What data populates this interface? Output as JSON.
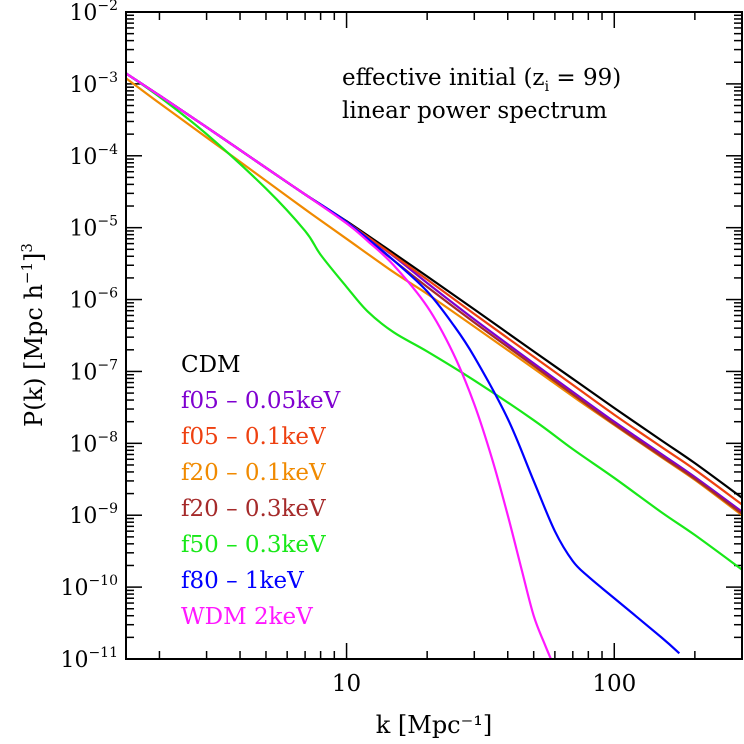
{
  "chart_data": {
    "type": "line",
    "title": "",
    "xlabel": "k  [Mpc⁻¹]",
    "ylabel_parts": {
      "main": "P(k)  [Mpc h",
      "sup1": "−1",
      "close": "]",
      "sup2": "3"
    },
    "x_scale": "log",
    "y_scale": "log",
    "xlim": [
      1.5,
      300
    ],
    "ylim": [
      1e-11,
      0.01
    ],
    "x_tick_labels": [
      {
        "value": 10,
        "label": "10"
      },
      {
        "value": 100,
        "label": "100"
      }
    ],
    "y_tick_labels": [
      {
        "exp": -2,
        "base": "10",
        "sup": "−2"
      },
      {
        "exp": -3,
        "base": "10",
        "sup": "−3"
      },
      {
        "exp": -4,
        "base": "10",
        "sup": "−4"
      },
      {
        "exp": -5,
        "base": "10",
        "sup": "−5"
      },
      {
        "exp": -6,
        "base": "10",
        "sup": "−6"
      },
      {
        "exp": -7,
        "base": "10",
        "sup": "−7"
      },
      {
        "exp": -8,
        "base": "10",
        "sup": "−8"
      },
      {
        "exp": -9,
        "base": "10",
        "sup": "−9"
      },
      {
        "exp": -10,
        "base": "10",
        "sup": "−10"
      },
      {
        "exp": -11,
        "base": "10",
        "sup": "−11"
      }
    ],
    "annotation": {
      "line1_a": "effective initial (z",
      "line1_sub": "i",
      "line1_b": " = 99)",
      "line2": "linear power spectrum"
    },
    "grid": false,
    "legend_position": "bottom-left",
    "series": [
      {
        "name": "CDM",
        "color": "#000000",
        "x": [
          1.5,
          2,
          3,
          5,
          7,
          10,
          15,
          20,
          30,
          50,
          70,
          100,
          150,
          200,
          300
        ],
        "y": [
          0.0014,
          0.00069,
          0.00025,
          6.8e-05,
          2.9e-05,
          1.23e-05,
          4.4e-06,
          2.1e-06,
          7.3e-07,
          1.9e-07,
          7.9e-08,
          3.1e-08,
          1.1e-08,
          5.3e-09,
          1.75e-09
        ]
      },
      {
        "name": "f05 – 0.05keV",
        "color": "#7f00d0",
        "x": [
          1.5,
          2,
          3,
          5,
          7,
          10,
          15,
          20,
          30,
          50,
          70,
          100,
          150,
          200,
          300
        ],
        "y": [
          0.0014,
          0.00069,
          0.00025,
          6.8e-05,
          2.9e-05,
          1.2e-05,
          4e-06,
          1.7e-06,
          5.3e-07,
          1.3e-07,
          5.2e-08,
          2e-08,
          7.1e-09,
          3.4e-09,
          1.12e-09
        ]
      },
      {
        "name": "f05 – 0.1keV",
        "color": "#ee4010",
        "x": [
          1.5,
          2,
          3,
          5,
          7,
          10,
          15,
          20,
          30,
          50,
          70,
          100,
          150,
          200,
          300
        ],
        "y": [
          0.0014,
          0.00069,
          0.00025,
          6.8e-05,
          2.9e-05,
          1.2e-05,
          4.1e-06,
          1.9e-06,
          6.3e-07,
          1.6e-07,
          6.5e-08,
          2.5e-08,
          8.9e-09,
          4.3e-09,
          1.41e-09
        ]
      },
      {
        "name": "f20 – 0.1keV",
        "color": "#f08a00",
        "x": [
          1.5,
          2,
          3,
          5,
          7,
          10,
          15,
          20,
          30,
          50,
          70,
          100,
          150,
          200,
          300
        ],
        "y": [
          0.0012,
          0.00054,
          0.00018,
          4.5e-05,
          1.8e-05,
          7e-06,
          2.4e-06,
          1.2e-06,
          4.2e-07,
          1.1e-07,
          4.5e-08,
          1.8e-08,
          6.4e-09,
          3.1e-09,
          1e-09
        ]
      },
      {
        "name": "f20 – 0.3keV",
        "color": "#a52a2a",
        "x": [
          1.5,
          2,
          3,
          5,
          7,
          10,
          15,
          20,
          30,
          50,
          70,
          100,
          150,
          200,
          300
        ],
        "y": [
          0.0014,
          0.00069,
          0.00025,
          6.8e-05,
          2.9e-05,
          1.15e-05,
          3.5e-06,
          1.5e-06,
          4.8e-07,
          1.2e-07,
          4.8e-08,
          1.85e-08,
          6.6e-09,
          3.2e-09,
          1.05e-09
        ]
      },
      {
        "name": "f50 – 0.3keV",
        "color": "#18e818",
        "x": [
          1.5,
          2,
          3,
          5,
          7,
          8,
          10,
          12,
          15,
          20,
          30,
          50,
          70,
          100,
          150,
          200,
          300
        ],
        "y": [
          0.0014,
          0.00066,
          0.0002,
          3.5e-05,
          9e-06,
          4.2e-06,
          1.5e-06,
          6.8e-07,
          3.5e-07,
          1.9e-07,
          7.5e-08,
          2.1e-08,
          8.3e-09,
          3.3e-09,
          1.1e-09,
          5.3e-10,
          1.75e-10
        ]
      },
      {
        "name": "f80 – 1keV",
        "color": "#0000ff",
        "x": [
          1.5,
          2,
          3,
          5,
          7,
          10,
          15,
          20,
          25,
          30,
          40,
          50,
          60,
          70,
          80,
          100,
          150,
          175
        ],
        "y": [
          0.0014,
          0.00069,
          0.00025,
          6.8e-05,
          2.9e-05,
          1.2e-05,
          3.5e-06,
          1.3e-06,
          4.5e-07,
          1.6e-07,
          2.2e-08,
          3e-09,
          6e-10,
          2.3e-10,
          1.4e-10,
          7e-11,
          2e-11,
          1.2e-11
        ]
      },
      {
        "name": "WDM 2keV",
        "color": "#ff18ff",
        "x": [
          1.5,
          2,
          3,
          5,
          7,
          10,
          12,
          15,
          20,
          25,
          30,
          35,
          40,
          45,
          50,
          55,
          58
        ],
        "y": [
          0.0014,
          0.00069,
          0.00025,
          6.8e-05,
          2.9e-05,
          1.15e-05,
          6.5e-06,
          3e-06,
          8e-07,
          1.8e-07,
          3.5e-08,
          6e-09,
          1e-09,
          1.8e-10,
          4e-11,
          1.6e-11,
          1e-11
        ]
      }
    ]
  }
}
